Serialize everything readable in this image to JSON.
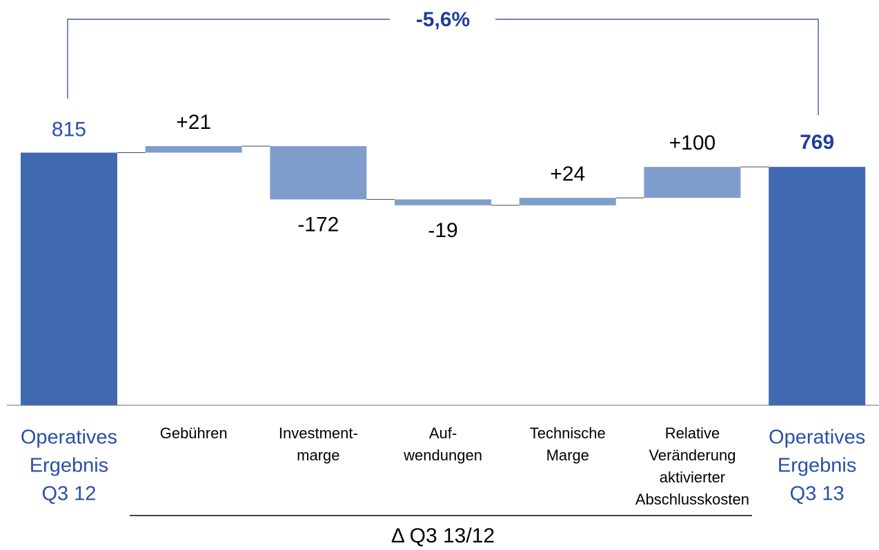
{
  "chart_data": {
    "type": "waterfall",
    "categories": [
      [
        "Operatives",
        "Ergebnis",
        "Q3 12"
      ],
      [
        "Gebühren"
      ],
      [
        "Investment-",
        "marge"
      ],
      [
        "Auf-",
        "wendungen"
      ],
      [
        "Technische",
        "Marge"
      ],
      [
        "Relative",
        "Veränderung",
        "aktivierter",
        "Abschlusskosten"
      ],
      [
        "Operatives",
        "Ergebnis",
        "Q3 13"
      ]
    ],
    "values": [
      815,
      21,
      -172,
      -19,
      24,
      100,
      769
    ],
    "value_labels": [
      "815",
      "+21",
      "-172",
      "-19",
      "+24",
      "+100",
      "769"
    ],
    "total_color": "#4169b1",
    "delta_color": "#7f9dcc",
    "change_annotation": "-5,6%",
    "delta_range_label": "Δ Q3 13/12"
  }
}
